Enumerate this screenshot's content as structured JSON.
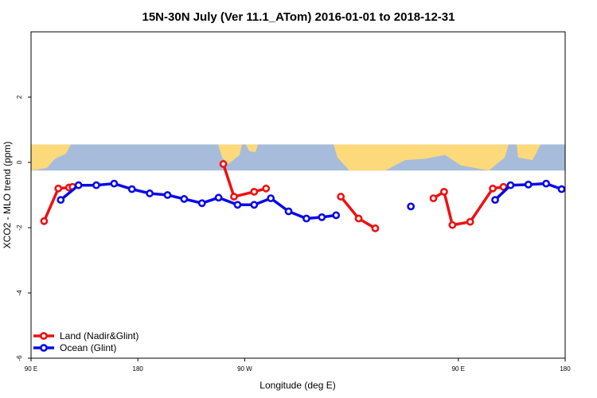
{
  "chart_data": {
    "type": "line",
    "title": "15N-30N July (Ver 11.1_ATom)   2016-01-01 to 2018-12-31",
    "xlabel": "Longitude (deg E)",
    "ylabel": "XCO2 - MLO trend (ppm)",
    "xlim": [
      90,
      540
    ],
    "ylim": [
      -6,
      4
    ],
    "x_ticks": [
      {
        "value": 90,
        "label": "90 E"
      },
      {
        "value": 180,
        "label": "180"
      },
      {
        "value": 270,
        "label": "90 W"
      },
      {
        "value": 450,
        "label": "90 E"
      },
      {
        "value": 540,
        "label": "180"
      }
    ],
    "y_ticks": [
      {
        "value": -6,
        "label": "-6"
      },
      {
        "value": -4,
        "label": "-4"
      },
      {
        "value": -2,
        "label": "-2"
      },
      {
        "value": 0,
        "label": "0"
      },
      {
        "value": 2,
        "label": "2"
      }
    ],
    "map_band": {
      "ymin": -0.25,
      "ymax": 0.55,
      "ocean_color": "#a7bcdb",
      "land_color": "#fcd97a"
    },
    "legend_position": "bottom-left",
    "grid": false,
    "series": [
      {
        "name": "Land (Nadir&Glint)",
        "color": "#ee1111",
        "segments": [
          [
            [
              101,
              -1.8
            ],
            [
              113,
              -0.8
            ],
            [
              122,
              -0.77
            ],
            [
              125,
              -0.75
            ]
          ],
          [
            [
              252,
              -0.05
            ],
            [
              261,
              -1.05
            ],
            [
              278,
              -0.9
            ],
            [
              288,
              -0.8
            ]
          ],
          [
            [
              351,
              -1.05
            ],
            [
              366,
              -1.72
            ],
            [
              380,
              -2.02
            ]
          ],
          [
            [
              429,
              -1.1
            ],
            [
              438,
              -0.9
            ],
            [
              445,
              -1.92
            ],
            [
              460,
              -1.82
            ],
            [
              479,
              -0.8
            ],
            [
              488,
              -0.75
            ]
          ]
        ]
      },
      {
        "name": "Ocean (Glint)",
        "color": "#0a0ae6",
        "segments": [
          [
            [
              115,
              -1.15
            ],
            [
              130,
              -0.7
            ],
            [
              145,
              -0.7
            ],
            [
              160,
              -0.65
            ],
            [
              175,
              -0.82
            ],
            [
              190,
              -0.95
            ],
            [
              205,
              -1.0
            ],
            [
              219,
              -1.12
            ],
            [
              234,
              -1.25
            ],
            [
              248,
              -1.08
            ],
            [
              264,
              -1.3
            ],
            [
              278,
              -1.3
            ],
            [
              292,
              -1.1
            ],
            [
              307,
              -1.5
            ],
            [
              322,
              -1.72
            ],
            [
              335,
              -1.68
            ],
            [
              347,
              -1.62
            ]
          ],
          [
            [
              410,
              -1.35
            ]
          ],
          [
            [
              481,
              -1.15
            ],
            [
              494,
              -0.7
            ],
            [
              509,
              -0.68
            ],
            [
              524,
              -0.65
            ],
            [
              537,
              -0.82
            ]
          ]
        ]
      }
    ]
  }
}
